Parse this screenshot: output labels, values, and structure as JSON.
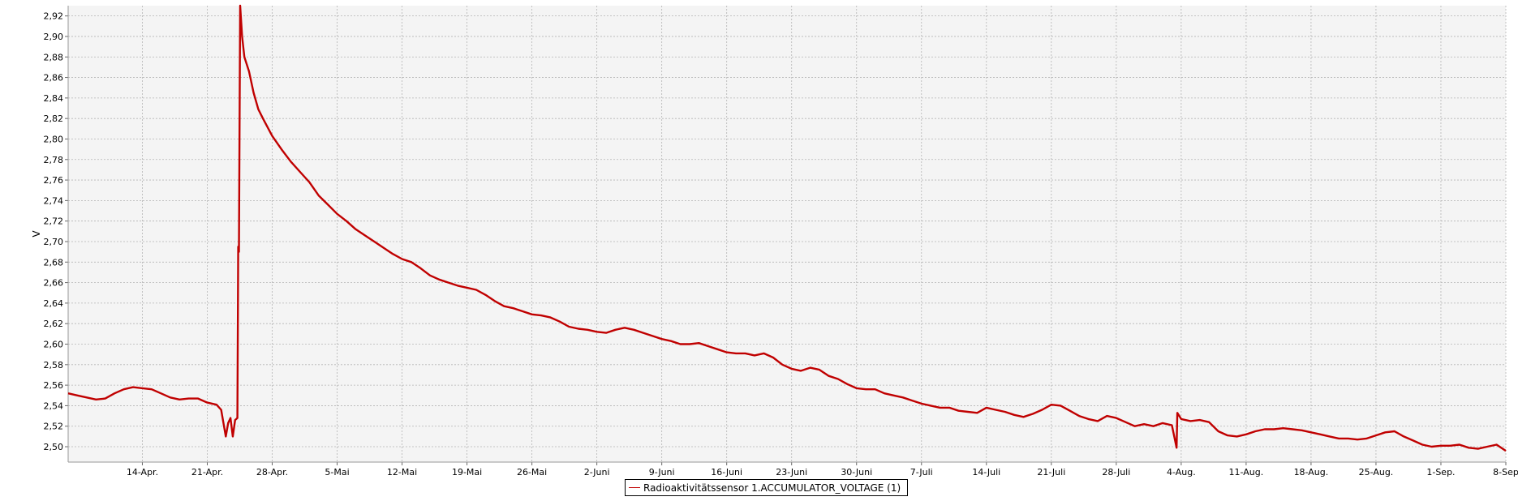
{
  "chart_data": {
    "type": "line",
    "title": "",
    "xlabel": "",
    "ylabel": "V",
    "ylim": [
      2.485,
      2.93
    ],
    "xlim": [
      "2021-04-06",
      "2021-09-08"
    ],
    "y_ticks": [
      "2,50",
      "2,52",
      "2,54",
      "2,56",
      "2,58",
      "2,60",
      "2,62",
      "2,64",
      "2,66",
      "2,68",
      "2,70",
      "2,72",
      "2,74",
      "2,76",
      "2,78",
      "2,80",
      "2,82",
      "2,84",
      "2,86",
      "2,88",
      "2,90",
      "2,92"
    ],
    "x_ticks": [
      {
        "date": "2021-04-14",
        "label": "14-Apr."
      },
      {
        "date": "2021-04-21",
        "label": "21-Apr."
      },
      {
        "date": "2021-04-28",
        "label": "28-Apr."
      },
      {
        "date": "2021-05-05",
        "label": "5-Mai"
      },
      {
        "date": "2021-05-12",
        "label": "12-Mai"
      },
      {
        "date": "2021-05-19",
        "label": "19-Mai"
      },
      {
        "date": "2021-05-26",
        "label": "26-Mai"
      },
      {
        "date": "2021-06-02",
        "label": "2-Juni"
      },
      {
        "date": "2021-06-09",
        "label": "9-Juni"
      },
      {
        "date": "2021-06-16",
        "label": "16-Juni"
      },
      {
        "date": "2021-06-23",
        "label": "23-Juni"
      },
      {
        "date": "2021-06-30",
        "label": "30-Juni"
      },
      {
        "date": "2021-07-07",
        "label": "7-Juli"
      },
      {
        "date": "2021-07-14",
        "label": "14-Juli"
      },
      {
        "date": "2021-07-21",
        "label": "21-Juli"
      },
      {
        "date": "2021-07-28",
        "label": "28-Juli"
      },
      {
        "date": "2021-08-04",
        "label": "4-Aug."
      },
      {
        "date": "2021-08-11",
        "label": "11-Aug."
      },
      {
        "date": "2021-08-18",
        "label": "18-Aug."
      },
      {
        "date": "2021-08-25",
        "label": "25-Aug."
      },
      {
        "date": "2021-09-01",
        "label": "1-Sep."
      },
      {
        "date": "2021-09-08",
        "label": "8-Sep"
      }
    ],
    "grid": true,
    "legend_placement": "bottom-center",
    "series": [
      {
        "name": "Radioaktivitätssensor 1.ACCUMULATOR_VOLTAGE (1)",
        "color": "#c00000",
        "points": [
          {
            "x": "2021-04-06",
            "y": 2.552
          },
          {
            "x": "2021-04-07",
            "y": 2.55
          },
          {
            "x": "2021-04-08",
            "y": 2.548
          },
          {
            "x": "2021-04-09",
            "y": 2.546
          },
          {
            "x": "2021-04-10",
            "y": 2.547
          },
          {
            "x": "2021-04-11",
            "y": 2.552
          },
          {
            "x": "2021-04-12",
            "y": 2.556
          },
          {
            "x": "2021-04-13",
            "y": 2.558
          },
          {
            "x": "2021-04-14",
            "y": 2.557
          },
          {
            "x": "2021-04-15",
            "y": 2.556
          },
          {
            "x": "2021-04-16",
            "y": 2.552
          },
          {
            "x": "2021-04-17",
            "y": 2.548
          },
          {
            "x": "2021-04-18",
            "y": 2.546
          },
          {
            "x": "2021-04-19",
            "y": 2.547
          },
          {
            "x": "2021-04-20",
            "y": 2.547
          },
          {
            "x": "2021-04-21",
            "y": 2.543
          },
          {
            "x": "2021-04-22",
            "y": 2.541
          },
          {
            "x": "2021-04-22T12:00",
            "y": 2.536
          },
          {
            "x": "2021-04-23",
            "y": 2.51
          },
          {
            "x": "2021-04-23T06:00",
            "y": 2.523
          },
          {
            "x": "2021-04-23T12:00",
            "y": 2.528
          },
          {
            "x": "2021-04-23T18:00",
            "y": 2.51
          },
          {
            "x": "2021-04-24",
            "y": 2.526
          },
          {
            "x": "2021-04-24T06:00",
            "y": 2.528
          },
          {
            "x": "2021-04-24T08:00",
            "y": 2.695
          },
          {
            "x": "2021-04-24T10:00",
            "y": 2.69
          },
          {
            "x": "2021-04-24T13:00",
            "y": 2.93
          },
          {
            "x": "2021-04-24T18:00",
            "y": 2.9
          },
          {
            "x": "2021-04-25",
            "y": 2.88
          },
          {
            "x": "2021-04-25T12:00",
            "y": 2.866
          },
          {
            "x": "2021-04-26",
            "y": 2.845
          },
          {
            "x": "2021-04-26T12:00",
            "y": 2.829
          },
          {
            "x": "2021-04-27",
            "y": 2.82
          },
          {
            "x": "2021-04-28",
            "y": 2.803
          },
          {
            "x": "2021-04-29",
            "y": 2.79
          },
          {
            "x": "2021-04-30",
            "y": 2.778
          },
          {
            "x": "2021-05-01",
            "y": 2.768
          },
          {
            "x": "2021-05-02",
            "y": 2.758
          },
          {
            "x": "2021-05-03",
            "y": 2.745
          },
          {
            "x": "2021-05-04",
            "y": 2.736
          },
          {
            "x": "2021-05-05",
            "y": 2.727
          },
          {
            "x": "2021-05-06",
            "y": 2.72
          },
          {
            "x": "2021-05-07",
            "y": 2.712
          },
          {
            "x": "2021-05-08",
            "y": 2.706
          },
          {
            "x": "2021-05-09",
            "y": 2.7
          },
          {
            "x": "2021-05-10",
            "y": 2.694
          },
          {
            "x": "2021-05-11",
            "y": 2.688
          },
          {
            "x": "2021-05-12",
            "y": 2.683
          },
          {
            "x": "2021-05-13",
            "y": 2.68
          },
          {
            "x": "2021-05-14",
            "y": 2.674
          },
          {
            "x": "2021-05-15",
            "y": 2.667
          },
          {
            "x": "2021-05-16",
            "y": 2.663
          },
          {
            "x": "2021-05-17",
            "y": 2.66
          },
          {
            "x": "2021-05-18",
            "y": 2.657
          },
          {
            "x": "2021-05-19",
            "y": 2.655
          },
          {
            "x": "2021-05-20",
            "y": 2.653
          },
          {
            "x": "2021-05-21",
            "y": 2.648
          },
          {
            "x": "2021-05-22",
            "y": 2.642
          },
          {
            "x": "2021-05-23",
            "y": 2.637
          },
          {
            "x": "2021-05-24",
            "y": 2.635
          },
          {
            "x": "2021-05-25",
            "y": 2.632
          },
          {
            "x": "2021-05-26",
            "y": 2.629
          },
          {
            "x": "2021-05-27",
            "y": 2.628
          },
          {
            "x": "2021-05-28",
            "y": 2.626
          },
          {
            "x": "2021-05-29",
            "y": 2.622
          },
          {
            "x": "2021-05-30",
            "y": 2.617
          },
          {
            "x": "2021-05-31",
            "y": 2.615
          },
          {
            "x": "2021-06-01",
            "y": 2.614
          },
          {
            "x": "2021-06-02",
            "y": 2.612
          },
          {
            "x": "2021-06-03",
            "y": 2.611
          },
          {
            "x": "2021-06-04",
            "y": 2.614
          },
          {
            "x": "2021-06-05",
            "y": 2.616
          },
          {
            "x": "2021-06-06",
            "y": 2.614
          },
          {
            "x": "2021-06-07",
            "y": 2.611
          },
          {
            "x": "2021-06-08",
            "y": 2.608
          },
          {
            "x": "2021-06-09",
            "y": 2.605
          },
          {
            "x": "2021-06-10",
            "y": 2.603
          },
          {
            "x": "2021-06-11",
            "y": 2.6
          },
          {
            "x": "2021-06-12",
            "y": 2.6
          },
          {
            "x": "2021-06-13",
            "y": 2.601
          },
          {
            "x": "2021-06-14",
            "y": 2.598
          },
          {
            "x": "2021-06-15",
            "y": 2.595
          },
          {
            "x": "2021-06-16",
            "y": 2.592
          },
          {
            "x": "2021-06-17",
            "y": 2.591
          },
          {
            "x": "2021-06-18",
            "y": 2.591
          },
          {
            "x": "2021-06-19",
            "y": 2.589
          },
          {
            "x": "2021-06-20",
            "y": 2.591
          },
          {
            "x": "2021-06-21",
            "y": 2.587
          },
          {
            "x": "2021-06-22",
            "y": 2.58
          },
          {
            "x": "2021-06-23",
            "y": 2.576
          },
          {
            "x": "2021-06-24",
            "y": 2.574
          },
          {
            "x": "2021-06-25",
            "y": 2.577
          },
          {
            "x": "2021-06-26",
            "y": 2.575
          },
          {
            "x": "2021-06-27",
            "y": 2.569
          },
          {
            "x": "2021-06-28",
            "y": 2.566
          },
          {
            "x": "2021-06-29",
            "y": 2.561
          },
          {
            "x": "2021-06-30",
            "y": 2.557
          },
          {
            "x": "2021-07-01",
            "y": 2.556
          },
          {
            "x": "2021-07-02",
            "y": 2.556
          },
          {
            "x": "2021-07-03",
            "y": 2.552
          },
          {
            "x": "2021-07-04",
            "y": 2.55
          },
          {
            "x": "2021-07-05",
            "y": 2.548
          },
          {
            "x": "2021-07-06",
            "y": 2.545
          },
          {
            "x": "2021-07-07",
            "y": 2.542
          },
          {
            "x": "2021-07-08",
            "y": 2.54
          },
          {
            "x": "2021-07-09",
            "y": 2.538
          },
          {
            "x": "2021-07-10",
            "y": 2.538
          },
          {
            "x": "2021-07-11",
            "y": 2.535
          },
          {
            "x": "2021-07-12",
            "y": 2.534
          },
          {
            "x": "2021-07-13",
            "y": 2.533
          },
          {
            "x": "2021-07-14",
            "y": 2.538
          },
          {
            "x": "2021-07-15",
            "y": 2.536
          },
          {
            "x": "2021-07-16",
            "y": 2.534
          },
          {
            "x": "2021-07-17",
            "y": 2.531
          },
          {
            "x": "2021-07-18",
            "y": 2.529
          },
          {
            "x": "2021-07-19",
            "y": 2.532
          },
          {
            "x": "2021-07-20",
            "y": 2.536
          },
          {
            "x": "2021-07-21",
            "y": 2.541
          },
          {
            "x": "2021-07-22",
            "y": 2.54
          },
          {
            "x": "2021-07-23",
            "y": 2.535
          },
          {
            "x": "2021-07-24",
            "y": 2.53
          },
          {
            "x": "2021-07-25",
            "y": 2.527
          },
          {
            "x": "2021-07-26",
            "y": 2.525
          },
          {
            "x": "2021-07-27",
            "y": 2.53
          },
          {
            "x": "2021-07-28",
            "y": 2.528
          },
          {
            "x": "2021-07-29",
            "y": 2.524
          },
          {
            "x": "2021-07-30",
            "y": 2.52
          },
          {
            "x": "2021-07-31",
            "y": 2.522
          },
          {
            "x": "2021-08-01",
            "y": 2.52
          },
          {
            "x": "2021-08-02",
            "y": 2.523
          },
          {
            "x": "2021-08-03",
            "y": 2.521
          },
          {
            "x": "2021-08-03T12:00",
            "y": 2.499
          },
          {
            "x": "2021-08-03T14:00",
            "y": 2.533
          },
          {
            "x": "2021-08-04",
            "y": 2.527
          },
          {
            "x": "2021-08-05",
            "y": 2.525
          },
          {
            "x": "2021-08-06",
            "y": 2.526
          },
          {
            "x": "2021-08-07",
            "y": 2.524
          },
          {
            "x": "2021-08-08",
            "y": 2.515
          },
          {
            "x": "2021-08-09",
            "y": 2.511
          },
          {
            "x": "2021-08-10",
            "y": 2.51
          },
          {
            "x": "2021-08-11",
            "y": 2.512
          },
          {
            "x": "2021-08-12",
            "y": 2.515
          },
          {
            "x": "2021-08-13",
            "y": 2.517
          },
          {
            "x": "2021-08-14",
            "y": 2.517
          },
          {
            "x": "2021-08-15",
            "y": 2.518
          },
          {
            "x": "2021-08-16",
            "y": 2.517
          },
          {
            "x": "2021-08-17",
            "y": 2.516
          },
          {
            "x": "2021-08-18",
            "y": 2.514
          },
          {
            "x": "2021-08-19",
            "y": 2.512
          },
          {
            "x": "2021-08-20",
            "y": 2.51
          },
          {
            "x": "2021-08-21",
            "y": 2.508
          },
          {
            "x": "2021-08-22",
            "y": 2.508
          },
          {
            "x": "2021-08-23",
            "y": 2.507
          },
          {
            "x": "2021-08-24",
            "y": 2.508
          },
          {
            "x": "2021-08-25",
            "y": 2.511
          },
          {
            "x": "2021-08-26",
            "y": 2.514
          },
          {
            "x": "2021-08-27",
            "y": 2.515
          },
          {
            "x": "2021-08-28",
            "y": 2.51
          },
          {
            "x": "2021-08-29",
            "y": 2.506
          },
          {
            "x": "2021-08-30",
            "y": 2.502
          },
          {
            "x": "2021-08-31",
            "y": 2.5
          },
          {
            "x": "2021-09-01",
            "y": 2.501
          },
          {
            "x": "2021-09-02",
            "y": 2.501
          },
          {
            "x": "2021-09-03",
            "y": 2.502
          },
          {
            "x": "2021-09-04",
            "y": 2.499
          },
          {
            "x": "2021-09-05",
            "y": 2.498
          },
          {
            "x": "2021-09-06",
            "y": 2.5
          },
          {
            "x": "2021-09-07",
            "y": 2.502
          },
          {
            "x": "2021-09-08",
            "y": 2.496
          }
        ]
      }
    ]
  }
}
